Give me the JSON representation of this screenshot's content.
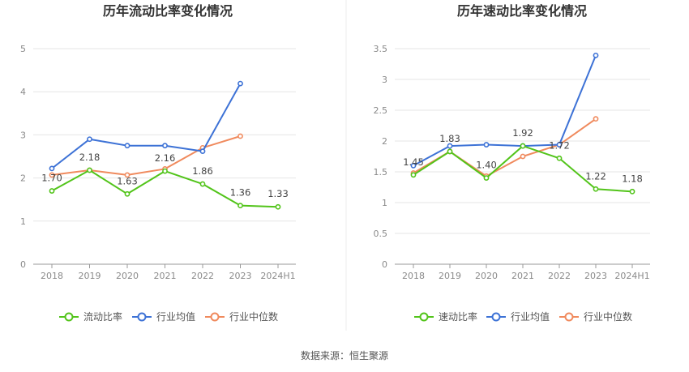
{
  "source": "数据来源：恒生聚源",
  "chart_data": [
    {
      "type": "line",
      "title": "历年流动比率变化情况",
      "categories": [
        "2018",
        "2019",
        "2020",
        "2021",
        "2022",
        "2023",
        "2024H1"
      ],
      "ylim": [
        0,
        5
      ],
      "yticks": [
        "0",
        "1",
        "2",
        "3",
        "4",
        "5"
      ],
      "grid": true,
      "legend_position": "bottom",
      "series": [
        {
          "name": "流动比率",
          "color": "#52c41a",
          "values": [
            1.7,
            2.18,
            1.63,
            2.16,
            1.86,
            1.36,
            1.33
          ],
          "labels": [
            "1.70",
            "2.18",
            "1.63",
            "2.16",
            "1.86",
            "1.36",
            "1.33"
          ]
        },
        {
          "name": "行业均值",
          "color": "#3d72d6",
          "values": [
            2.22,
            2.9,
            2.75,
            2.75,
            2.62,
            4.19,
            null
          ]
        },
        {
          "name": "行业中位数",
          "color": "#f08a5d",
          "values": [
            2.07,
            2.18,
            2.07,
            2.21,
            2.7,
            2.97,
            null
          ]
        }
      ]
    },
    {
      "type": "line",
      "title": "历年速动比率变化情况",
      "categories": [
        "2018",
        "2019",
        "2020",
        "2021",
        "2022",
        "2023",
        "2024H1"
      ],
      "ylim": [
        0,
        3.5
      ],
      "yticks": [
        "0",
        "0.5",
        "1",
        "1.5",
        "2",
        "2.5",
        "3",
        "3.5"
      ],
      "grid": true,
      "legend_position": "bottom",
      "series": [
        {
          "name": "速动比率",
          "color": "#52c41a",
          "values": [
            1.45,
            1.83,
            1.4,
            1.92,
            1.72,
            1.22,
            1.18
          ],
          "labels": [
            "1.45",
            "1.83",
            "1.40",
            "1.92",
            "1.72",
            "1.22",
            "1.18"
          ]
        },
        {
          "name": "行业均值",
          "color": "#3d72d6",
          "values": [
            1.6,
            1.92,
            1.94,
            1.92,
            1.94,
            3.39,
            null
          ]
        },
        {
          "name": "行业中位数",
          "color": "#f08a5d",
          "values": [
            1.48,
            1.83,
            1.43,
            1.75,
            1.94,
            2.36,
            null
          ]
        }
      ]
    }
  ]
}
